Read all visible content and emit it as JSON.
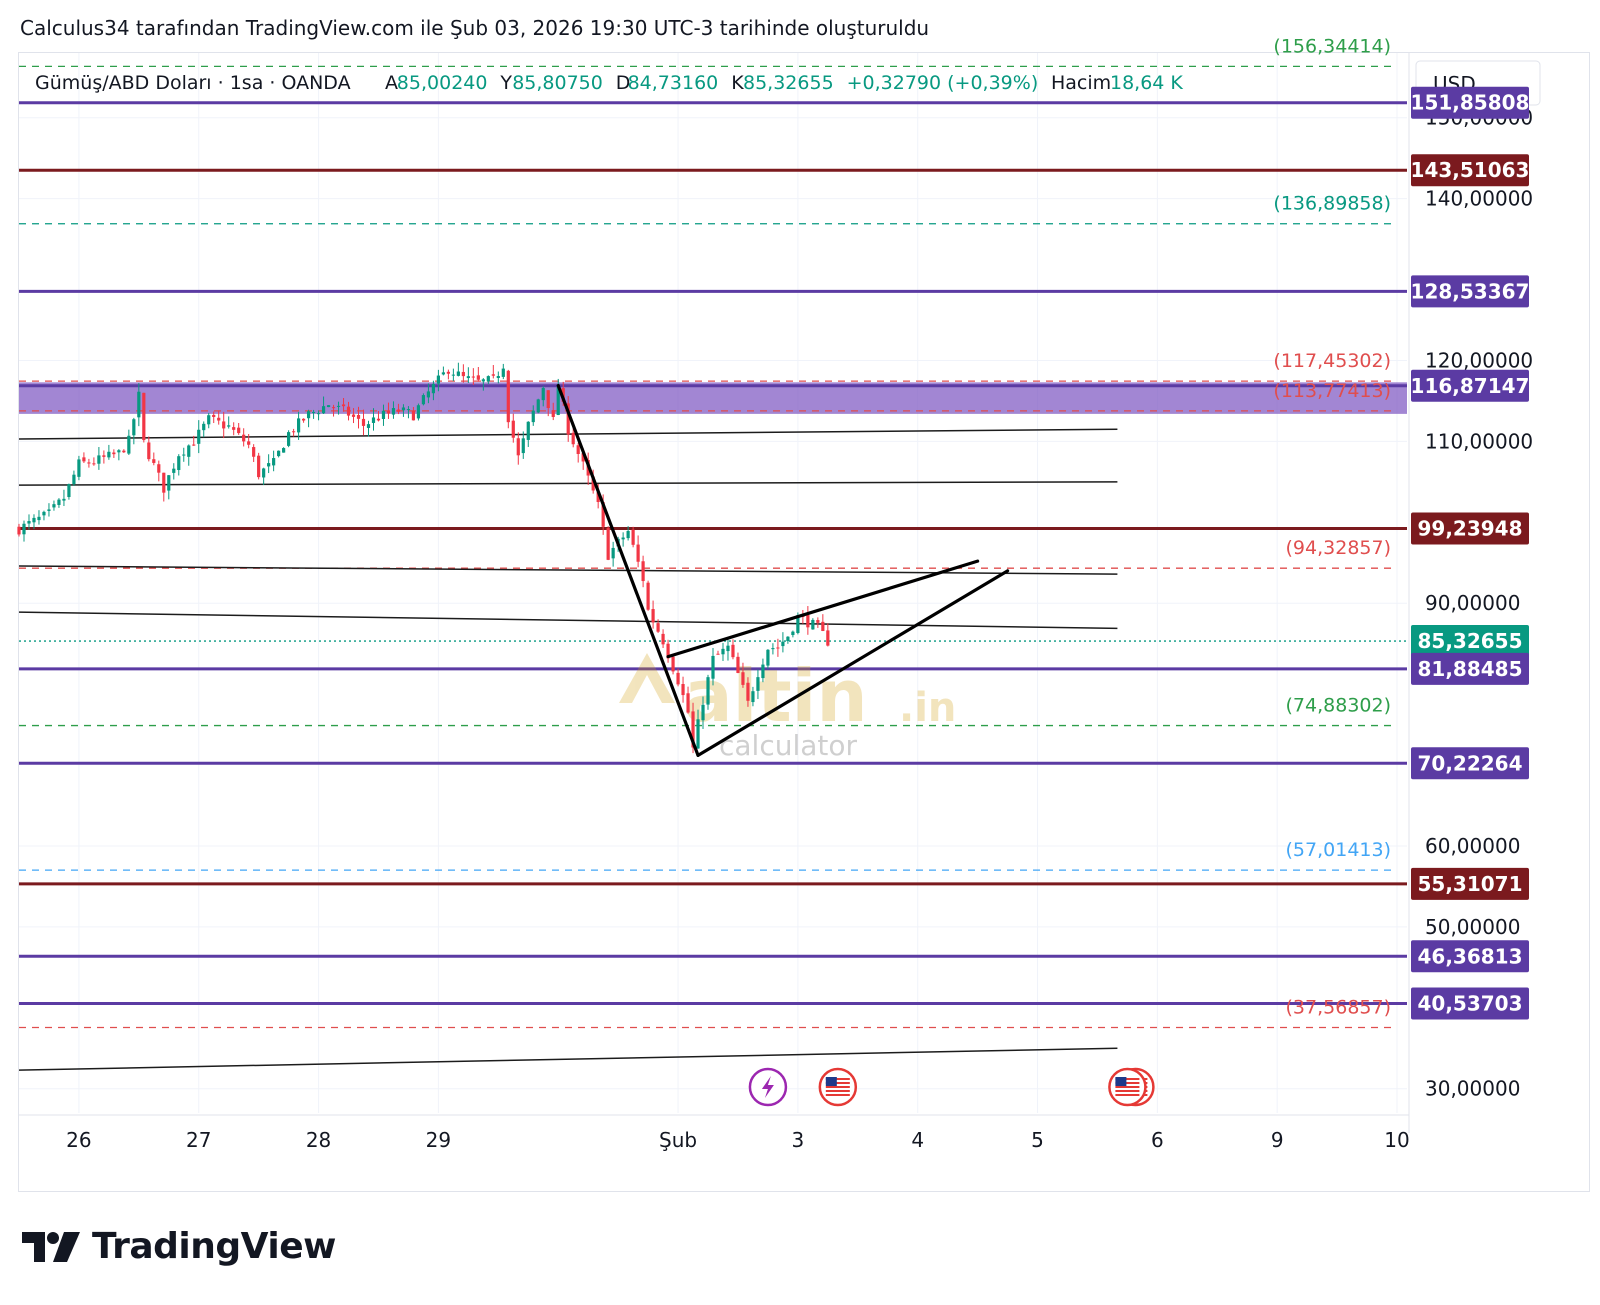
{
  "caption": "Calculus34 tarafından TradingView.com ile Şub 03, 2026 19:30 UTC-3 tarihinde oluşturuldu",
  "brand": "TradingView",
  "watermark": {
    "main": "altin",
    "suffix": ".in",
    "sub": "calculator"
  },
  "header": {
    "symbol": "Gümüş/ABD Doları · 1sa · OANDA",
    "stats": [
      {
        "label": "A",
        "value": "85,00240"
      },
      {
        "label": "Y",
        "value": "85,80750"
      },
      {
        "label": "D",
        "value": "84,73160"
      },
      {
        "label": "K",
        "value": "85,32655"
      },
      {
        "label": "",
        "value": "+0,32790 (+0,39%)"
      },
      {
        "label": "Hacim",
        "value": "18,64 K"
      }
    ],
    "currency": "USD"
  },
  "colors": {
    "purple": "#5b3ba3",
    "darkred": "#7b1a1e",
    "teal": "#089981",
    "green": "#2e9e4a",
    "red": "#e04e4e",
    "blue": "#42a5f5",
    "bull": "#089981",
    "bear": "#f23645",
    "zone": "#7e57c2",
    "text": "#131722"
  },
  "chart_data": {
    "type": "candlestick",
    "title": "Gümüş/ABD Doları · 1sa · OANDA",
    "y_axis": {
      "ylim": [
        27,
        158
      ],
      "ticks": [
        30,
        50,
        60,
        90,
        110,
        120,
        140,
        150
      ],
      "tick_labels": [
        "30,00000",
        "50,00000",
        "60,00000",
        "90,00000",
        "110,00000",
        "120,00000",
        "140,00000",
        "150,00000"
      ]
    },
    "x_axis": {
      "tick_labels": [
        "26",
        "27",
        "28",
        "29",
        "Şub",
        "3",
        "4",
        "5",
        "6",
        "9",
        "10"
      ],
      "tick_times": [
        0,
        24,
        48,
        72,
        120,
        144,
        168,
        192,
        216,
        240,
        264
      ]
    },
    "levels": [
      {
        "value": 151.85808,
        "label": "151,85808",
        "style": "solid",
        "color": "purple"
      },
      {
        "value": 143.51063,
        "label": "143,51063",
        "style": "solid",
        "color": "darkred"
      },
      {
        "value": 128.53367,
        "label": "128,53367",
        "style": "solid",
        "color": "purple"
      },
      {
        "value": 116.87147,
        "label": "116,87147",
        "style": "solid",
        "color": "purple"
      },
      {
        "value": 99.23948,
        "label": "99,23948",
        "style": "solid",
        "color": "darkred"
      },
      {
        "value": 85.32655,
        "label": "85,32655",
        "style": "dotted",
        "color": "teal"
      },
      {
        "value": 81.88485,
        "label": "81,88485",
        "style": "solid",
        "color": "purple"
      },
      {
        "value": 70.22264,
        "label": "70,22264",
        "style": "solid",
        "color": "purple"
      },
      {
        "value": 55.31071,
        "label": "55,31071",
        "style": "solid",
        "color": "darkred"
      },
      {
        "value": 46.36813,
        "label": "46,36813",
        "style": "solid",
        "color": "purple"
      },
      {
        "value": 40.53703,
        "label": "40,53703",
        "style": "solid",
        "color": "purple"
      }
    ],
    "projections": [
      {
        "value": 156.34414,
        "label": "(156,34414)",
        "color": "green"
      },
      {
        "value": 136.89858,
        "label": "(136,89858)",
        "color": "teal"
      },
      {
        "value": 117.45302,
        "label": "(117,45302)",
        "color": "red"
      },
      {
        "value": 113.77413,
        "label": "(113,77413)",
        "color": "red"
      },
      {
        "value": 94.32857,
        "label": "(94,32857)",
        "color": "red"
      },
      {
        "value": 74.88302,
        "label": "(74,88302)",
        "color": "green"
      },
      {
        "value": 57.01413,
        "label": "(57,01413)",
        "color": "blue"
      },
      {
        "value": 37.56857,
        "label": "(37,56857)",
        "color": "red"
      }
    ],
    "zone": {
      "from": 113.4,
      "to": 117.3
    },
    "trend_lines": [
      {
        "x1": -12,
        "y1": 110.3,
        "x2": 208,
        "y2": 111.5,
        "color": "text",
        "width": 1.5
      },
      {
        "x1": -12,
        "y1": 104.6,
        "x2": 208,
        "y2": 105.0,
        "color": "text",
        "width": 1.5
      },
      {
        "x1": -12,
        "y1": 94.6,
        "x2": 208,
        "y2": 93.6,
        "color": "text",
        "width": 1.5
      },
      {
        "x1": -12,
        "y1": 88.9,
        "x2": 208,
        "y2": 86.9,
        "color": "text",
        "width": 1.5
      },
      {
        "x1": -12,
        "y1": 32.3,
        "x2": 208,
        "y2": 35.0,
        "color": "text",
        "width": 1.5
      }
    ],
    "pattern_lines": [
      {
        "x1": 96,
        "y1": 116.9,
        "x2": 124,
        "y2": 71.2
      },
      {
        "x1": 124,
        "y1": 71.2,
        "x2": 186,
        "y2": 94.0
      },
      {
        "x1": 118,
        "y1": 83.4,
        "x2": 180,
        "y2": 95.2
      }
    ],
    "events": [
      {
        "t": 138,
        "type": "lightning"
      },
      {
        "t": 152,
        "type": "us-flag"
      },
      {
        "t": 210,
        "type": "us-flag"
      }
    ],
    "price_path": [
      [
        -12,
        99.2
      ],
      [
        -6,
        101
      ],
      [
        -3,
        103
      ],
      [
        0,
        107.2
      ],
      [
        3,
        107.5
      ],
      [
        8,
        108.5
      ],
      [
        10,
        110
      ],
      [
        12,
        115.6
      ],
      [
        13,
        109.8
      ],
      [
        15,
        107
      ],
      [
        17,
        104.2
      ],
      [
        20,
        108.5
      ],
      [
        23,
        110
      ],
      [
        26,
        112.7
      ],
      [
        30,
        111.8
      ],
      [
        34,
        109.5
      ],
      [
        36,
        106
      ],
      [
        39,
        107.3
      ],
      [
        42,
        111
      ],
      [
        46,
        113.3
      ],
      [
        50,
        114.6
      ],
      [
        54,
        113.4
      ],
      [
        57,
        112
      ],
      [
        60,
        113
      ],
      [
        64,
        113.8
      ],
      [
        67,
        113.3
      ],
      [
        70,
        116
      ],
      [
        74,
        119
      ],
      [
        77,
        117.8
      ],
      [
        80,
        117.3
      ],
      [
        83,
        117.5
      ],
      [
        85,
        119.5
      ],
      [
        86,
        113
      ],
      [
        88,
        108
      ],
      [
        90,
        112
      ],
      [
        93,
        116.8
      ],
      [
        95,
        112.5
      ],
      [
        96,
        116.9
      ],
      [
        98,
        111.5
      ],
      [
        101,
        107
      ],
      [
        104,
        102
      ],
      [
        106,
        96
      ],
      [
        110,
        98.9
      ],
      [
        113,
        93
      ],
      [
        114,
        89.1
      ],
      [
        117,
        85.4
      ],
      [
        120,
        80.5
      ],
      [
        122,
        76.5
      ],
      [
        123,
        72
      ],
      [
        125,
        78
      ],
      [
        127,
        83.1
      ],
      [
        130,
        84.5
      ],
      [
        132,
        81.2
      ],
      [
        134,
        77.6
      ],
      [
        136,
        81.5
      ],
      [
        138,
        84.5
      ],
      [
        140,
        84.6
      ],
      [
        142,
        86
      ],
      [
        144,
        88.3
      ],
      [
        146,
        87.7
      ],
      [
        148,
        86.9
      ],
      [
        150,
        85.3
      ]
    ]
  }
}
